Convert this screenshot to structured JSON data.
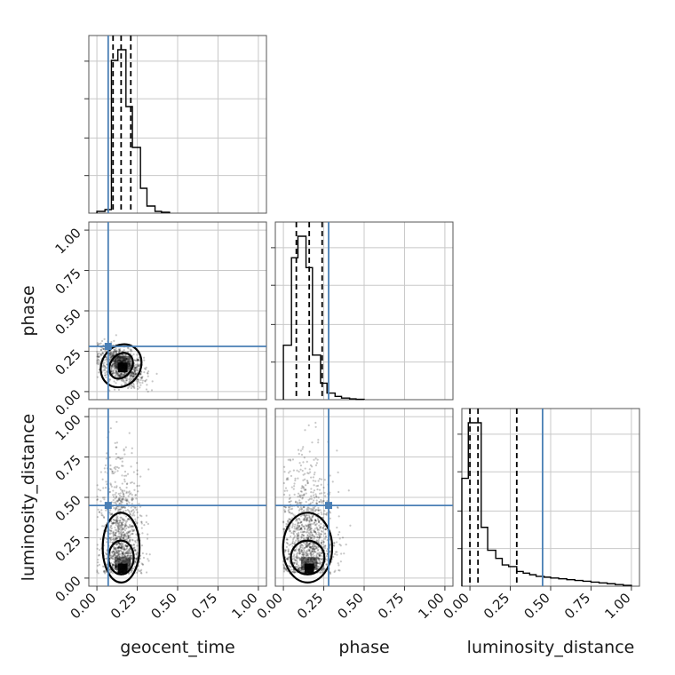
{
  "chart_data": {
    "type": "corner",
    "parameters": [
      "geocent_time",
      "phase",
      "luminosity_distance"
    ],
    "axis_ticks": [
      "0.00",
      "0.25",
      "0.50",
      "0.75",
      "1.00"
    ],
    "xlim": [
      -0.05,
      1.05
    ],
    "ylim": [
      -0.05,
      1.05
    ],
    "truths": {
      "geocent_time": 0.07,
      "phase": 0.28,
      "luminosity_distance": 0.45
    },
    "colors": {
      "truth": "#4a7fb5",
      "hist": "#000000",
      "grid": "#c8c8c8"
    },
    "histograms": {
      "geocent_time": {
        "bin_edges": [
          0.0,
          0.05,
          0.09,
          0.13,
          0.18,
          0.22,
          0.27,
          0.31,
          0.36,
          0.4,
          0.45
        ],
        "counts": [
          0.01,
          0.02,
          0.86,
          0.92,
          0.6,
          0.37,
          0.14,
          0.04,
          0.01,
          0.005
        ],
        "quantiles": [
          0.1,
          0.15,
          0.21
        ]
      },
      "phase": {
        "bin_edges": [
          0.0,
          0.05,
          0.09,
          0.14,
          0.18,
          0.23,
          0.27,
          0.32,
          0.36,
          0.41,
          0.45,
          0.5
        ],
        "counts": [
          0.33,
          0.86,
          0.99,
          0.8,
          0.27,
          0.1,
          0.04,
          0.02,
          0.01,
          0.005,
          0.002
        ],
        "quantiles": [
          0.08,
          0.16,
          0.24
        ]
      },
      "luminosity_distance": {
        "bin_edges": [
          -0.05,
          -0.01,
          0.03,
          0.07,
          0.11,
          0.16,
          0.2,
          0.24,
          0.29,
          0.33,
          0.37,
          0.41,
          0.46,
          0.5,
          0.55,
          0.6,
          0.65,
          0.7,
          0.75,
          0.8,
          0.85,
          0.9,
          0.95,
          1.0
        ],
        "counts": [
          0.66,
          1.0,
          1.0,
          0.36,
          0.22,
          0.17,
          0.13,
          0.12,
          0.09,
          0.08,
          0.07,
          0.06,
          0.055,
          0.05,
          0.045,
          0.04,
          0.035,
          0.03,
          0.025,
          0.02,
          0.015,
          0.01,
          0.005
        ],
        "quantiles": [
          0.0,
          0.05,
          0.29
        ]
      }
    },
    "pairs": [
      {
        "x": "geocent_time",
        "y": "phase",
        "center": [
          0.15,
          0.16
        ],
        "spread": [
          0.07,
          0.09
        ],
        "tilt": -0.35,
        "points": 900
      },
      {
        "x": "geocent_time",
        "y": "luminosity_distance",
        "center": [
          0.15,
          0.07
        ],
        "spread": [
          0.06,
          0.3
        ],
        "tilt": 0.0,
        "points": 1100
      },
      {
        "x": "phase",
        "y": "luminosity_distance",
        "center": [
          0.15,
          0.07
        ],
        "spread": [
          0.08,
          0.3
        ],
        "tilt": 0.0,
        "points": 1200
      }
    ]
  }
}
